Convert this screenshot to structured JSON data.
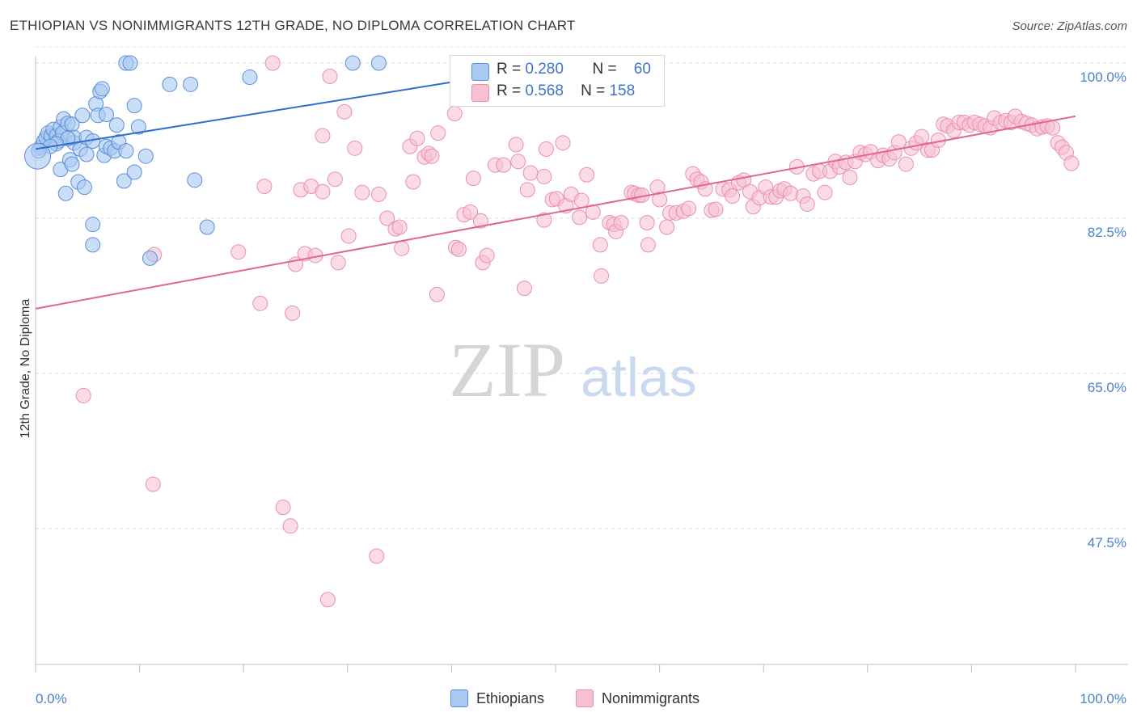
{
  "title": "ETHIOPIAN VS NONIMMIGRANTS 12TH GRADE, NO DIPLOMA CORRELATION CHART",
  "source": "Source: ZipAtlas.com",
  "watermark": {
    "zip": "ZIP",
    "atlas": "atlas"
  },
  "legend": {
    "ethiopians": {
      "r_label": "R =",
      "r_value": "0.280",
      "n_label": "N =",
      "n_value": "60"
    },
    "nonimmigrants": {
      "r_label": "R =",
      "r_value": "0.568",
      "n_label": "N =",
      "n_value": "158"
    }
  },
  "bottom_legend": {
    "ethiopians": "Ethiopians",
    "nonimmigrants": "Nonimmigrants"
  },
  "colors": {
    "ethiopians_fill": "#a9c8f2",
    "ethiopians_stroke": "#5b8fd8",
    "ethiopians_line": "#2e6fce",
    "nonimmigrants_fill": "#f7bfd1",
    "nonimmigrants_stroke": "#e98fae",
    "nonimmigrants_line": "#e0668f",
    "axis_text": "#4a7fd1"
  },
  "chart_data": {
    "type": "scatter",
    "ylabel": "12th Grade, No Diploma",
    "xlim": [
      0,
      100
    ],
    "ylim": [
      30,
      102.5
    ],
    "yticks": [
      47.5,
      65.0,
      82.5,
      100.0
    ],
    "ytick_labels": [
      "47.5%",
      "65.0%",
      "82.5%",
      "100.0%"
    ],
    "xtick_labels": [
      "0.0%",
      "100.0%"
    ],
    "grid": "dashed horizontal",
    "legend_position": "top-center",
    "series": [
      {
        "name": "Ethiopians",
        "trend": [
          [
            0,
            90.3
          ],
          [
            40.3,
            97.9
          ]
        ],
        "points": [
          [
            0.5,
            90.5
          ],
          [
            0.8,
            91.2
          ],
          [
            1.0,
            91.6
          ],
          [
            1.2,
            92.1
          ],
          [
            1.5,
            91.8
          ],
          [
            1.7,
            92.5
          ],
          [
            2.0,
            91.8
          ],
          [
            2.2,
            91.2
          ],
          [
            2.4,
            88.0
          ],
          [
            2.4,
            92.8
          ],
          [
            2.6,
            92.1
          ],
          [
            2.7,
            93.7
          ],
          [
            2.9,
            85.3
          ],
          [
            3.1,
            93.2
          ],
          [
            3.3,
            89.1
          ],
          [
            3.5,
            88.6
          ],
          [
            3.5,
            93.1
          ],
          [
            3.7,
            91.0
          ],
          [
            3.7,
            91.6
          ],
          [
            4.1,
            86.6
          ],
          [
            4.3,
            90.3
          ],
          [
            4.5,
            94.1
          ],
          [
            4.7,
            86.0
          ],
          [
            4.9,
            91.6
          ],
          [
            4.9,
            89.7
          ],
          [
            5.5,
            91.2
          ],
          [
            5.5,
            81.8
          ],
          [
            5.5,
            79.5
          ],
          [
            5.8,
            95.4
          ],
          [
            6.0,
            94.1
          ],
          [
            6.2,
            96.8
          ],
          [
            6.4,
            97.1
          ],
          [
            6.6,
            89.6
          ],
          [
            6.8,
            94.2
          ],
          [
            6.8,
            90.6
          ],
          [
            7.2,
            90.4
          ],
          [
            7.6,
            90.1
          ],
          [
            7.8,
            93.0
          ],
          [
            8.0,
            91.1
          ],
          [
            8.5,
            86.7
          ],
          [
            8.7,
            90.1
          ],
          [
            8.7,
            100.0
          ],
          [
            9.1,
            100.0
          ],
          [
            9.5,
            87.7
          ],
          [
            9.5,
            95.2
          ],
          [
            9.9,
            92.8
          ],
          [
            10.6,
            89.5
          ],
          [
            11.0,
            78.0
          ],
          [
            12.9,
            97.6
          ],
          [
            14.9,
            97.6
          ],
          [
            15.3,
            86.8
          ],
          [
            16.5,
            81.5
          ],
          [
            20.6,
            98.4
          ],
          [
            30.5,
            100.0
          ],
          [
            33.0,
            100.0
          ],
          [
            3.1,
            91.5
          ],
          [
            2.0,
            90.9
          ],
          [
            1.4,
            90.6
          ],
          [
            0.3,
            90.1
          ],
          [
            0.2,
            89.5
          ]
        ]
      },
      {
        "name": "Nonimmigrants",
        "trend": [
          [
            0,
            72.3
          ],
          [
            100,
            94.0
          ]
        ],
        "points": [
          [
            4.6,
            62.5
          ],
          [
            11.3,
            52.5
          ],
          [
            11.4,
            78.4
          ],
          [
            19.5,
            78.7
          ],
          [
            21.6,
            72.9
          ],
          [
            22.0,
            86.1
          ],
          [
            22.8,
            100.0
          ],
          [
            23.8,
            49.9
          ],
          [
            24.5,
            47.8
          ],
          [
            24.7,
            71.8
          ],
          [
            25.0,
            77.3
          ],
          [
            25.5,
            85.7
          ],
          [
            25.9,
            78.5
          ],
          [
            26.5,
            86.1
          ],
          [
            26.9,
            78.3
          ],
          [
            27.6,
            91.8
          ],
          [
            27.6,
            85.5
          ],
          [
            28.1,
            39.5
          ],
          [
            28.3,
            98.5
          ],
          [
            28.8,
            86.9
          ],
          [
            29.1,
            77.5
          ],
          [
            29.7,
            94.5
          ],
          [
            30.1,
            80.5
          ],
          [
            30.7,
            90.4
          ],
          [
            31.4,
            85.4
          ],
          [
            32.8,
            44.4
          ],
          [
            33.0,
            85.2
          ],
          [
            33.8,
            82.5
          ],
          [
            34.6,
            81.3
          ],
          [
            35.0,
            81.5
          ],
          [
            35.2,
            79.1
          ],
          [
            36.0,
            90.6
          ],
          [
            36.3,
            86.6
          ],
          [
            36.7,
            91.5
          ],
          [
            37.4,
            89.4
          ],
          [
            37.8,
            89.8
          ],
          [
            38.1,
            89.5
          ],
          [
            38.6,
            73.9
          ],
          [
            38.7,
            92.1
          ],
          [
            40.3,
            94.3
          ],
          [
            40.4,
            79.2
          ],
          [
            40.7,
            79.0
          ],
          [
            41.2,
            82.9
          ],
          [
            41.8,
            83.2
          ],
          [
            42.1,
            87.0
          ],
          [
            42.8,
            82.2
          ],
          [
            43.0,
            77.5
          ],
          [
            43.4,
            78.3
          ],
          [
            44.2,
            88.5
          ],
          [
            45.0,
            88.5
          ],
          [
            46.2,
            90.8
          ],
          [
            46.4,
            88.9
          ],
          [
            47.0,
            74.6
          ],
          [
            47.3,
            85.7
          ],
          [
            47.6,
            87.6
          ],
          [
            48.9,
            87.2
          ],
          [
            48.9,
            82.3
          ],
          [
            49.1,
            90.3
          ],
          [
            49.7,
            84.6
          ],
          [
            50.1,
            84.7
          ],
          [
            50.7,
            91.0
          ],
          [
            51.0,
            83.9
          ],
          [
            51.5,
            85.2
          ],
          [
            52.3,
            82.6
          ],
          [
            52.5,
            84.5
          ],
          [
            53.0,
            87.4
          ],
          [
            53.6,
            83.2
          ],
          [
            54.3,
            79.5
          ],
          [
            54.4,
            76.0
          ],
          [
            55.2,
            82.0
          ],
          [
            55.6,
            81.8
          ],
          [
            55.8,
            81.0
          ],
          [
            56.3,
            82.0
          ],
          [
            57.3,
            85.4
          ],
          [
            57.6,
            85.3
          ],
          [
            58.0,
            85.1
          ],
          [
            58.3,
            85.1
          ],
          [
            58.8,
            82.0
          ],
          [
            58.9,
            79.5
          ],
          [
            59.8,
            86.0
          ],
          [
            60.0,
            84.6
          ],
          [
            60.7,
            81.5
          ],
          [
            61.0,
            83.1
          ],
          [
            61.6,
            83.1
          ],
          [
            62.3,
            83.3
          ],
          [
            62.8,
            83.6
          ],
          [
            63.2,
            87.5
          ],
          [
            63.6,
            86.9
          ],
          [
            64.0,
            86.6
          ],
          [
            64.4,
            85.8
          ],
          [
            65.0,
            83.4
          ],
          [
            65.4,
            83.5
          ],
          [
            66.1,
            85.8
          ],
          [
            66.7,
            85.7
          ],
          [
            67.0,
            85.0
          ],
          [
            67.6,
            86.5
          ],
          [
            68.1,
            86.8
          ],
          [
            68.7,
            85.5
          ],
          [
            69.0,
            83.8
          ],
          [
            69.6,
            84.8
          ],
          [
            70.2,
            86.0
          ],
          [
            70.7,
            84.9
          ],
          [
            71.2,
            84.9
          ],
          [
            71.6,
            85.6
          ],
          [
            72.0,
            85.8
          ],
          [
            72.6,
            85.3
          ],
          [
            73.2,
            88.3
          ],
          [
            73.8,
            85.0
          ],
          [
            74.2,
            84.1
          ],
          [
            74.8,
            87.5
          ],
          [
            75.4,
            87.8
          ],
          [
            75.9,
            85.4
          ],
          [
            76.4,
            87.8
          ],
          [
            76.9,
            88.9
          ],
          [
            77.3,
            88.3
          ],
          [
            77.9,
            88.8
          ],
          [
            78.3,
            87.1
          ],
          [
            78.8,
            88.9
          ],
          [
            79.3,
            89.9
          ],
          [
            79.8,
            89.7
          ],
          [
            80.3,
            90.0
          ],
          [
            81.0,
            89.0
          ],
          [
            81.5,
            89.6
          ],
          [
            82.1,
            89.2
          ],
          [
            82.6,
            89.9
          ],
          [
            83.0,
            91.1
          ],
          [
            83.7,
            88.6
          ],
          [
            84.2,
            90.4
          ],
          [
            84.7,
            91.0
          ],
          [
            85.2,
            91.7
          ],
          [
            85.8,
            90.2
          ],
          [
            86.2,
            90.2
          ],
          [
            86.8,
            91.3
          ],
          [
            87.3,
            93.1
          ],
          [
            87.7,
            92.9
          ],
          [
            88.3,
            92.4
          ],
          [
            88.8,
            93.3
          ],
          [
            89.3,
            93.3
          ],
          [
            89.8,
            93.0
          ],
          [
            90.3,
            93.3
          ],
          [
            90.8,
            93.1
          ],
          [
            91.3,
            92.9
          ],
          [
            91.8,
            92.7
          ],
          [
            92.2,
            93.8
          ],
          [
            92.8,
            93.3
          ],
          [
            93.3,
            93.5
          ],
          [
            93.8,
            93.3
          ],
          [
            94.2,
            94.0
          ],
          [
            94.8,
            93.4
          ],
          [
            95.3,
            93.2
          ],
          [
            95.8,
            93.0
          ],
          [
            96.3,
            92.6
          ],
          [
            96.8,
            92.8
          ],
          [
            97.3,
            92.9
          ],
          [
            97.8,
            92.7
          ],
          [
            98.3,
            91.0
          ],
          [
            98.7,
            90.5
          ],
          [
            99.1,
            89.9
          ],
          [
            99.6,
            88.7
          ]
        ]
      }
    ]
  }
}
